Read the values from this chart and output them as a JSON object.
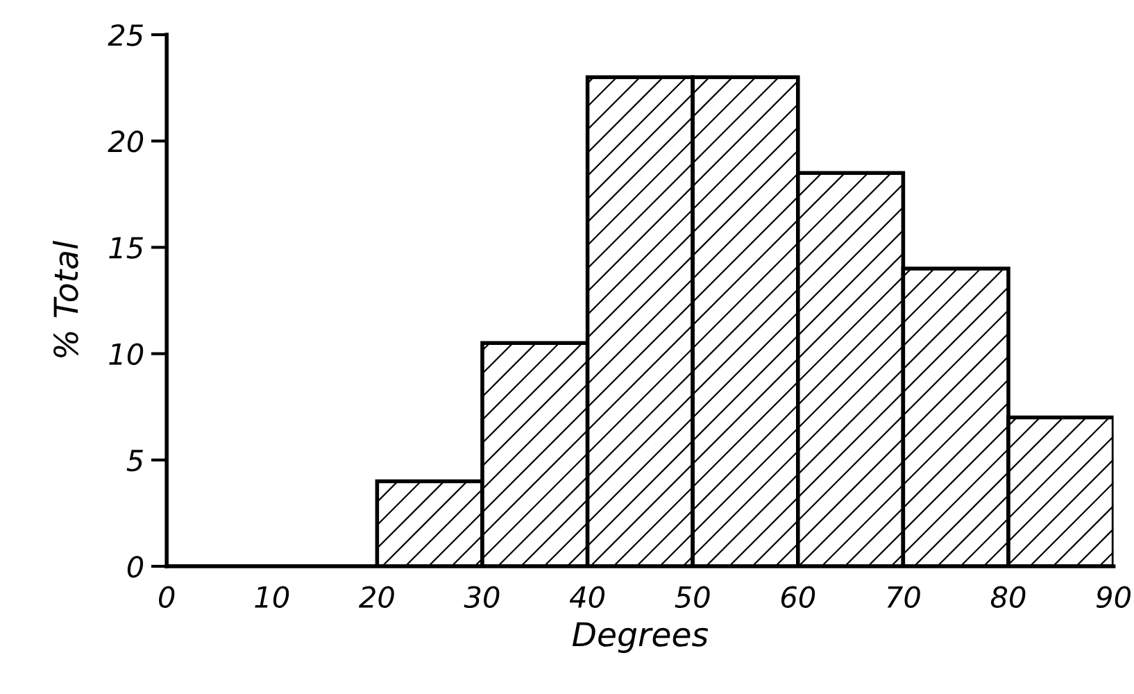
{
  "chart_data": {
    "type": "histogram",
    "xlabel": "Degrees",
    "ylabel": "% Total",
    "bins": [
      0,
      10,
      20,
      30,
      40,
      50,
      60,
      70,
      80,
      90
    ],
    "values": [
      0,
      0,
      4,
      10.5,
      23,
      23,
      18.5,
      14,
      7
    ],
    "color": "#000000",
    "xlim": [
      0,
      90
    ],
    "xticks": [
      0,
      10,
      20,
      30,
      40,
      50,
      60,
      70,
      80,
      90
    ],
    "ylim": [
      0,
      25
    ],
    "yticks": [
      0,
      5,
      10,
      15,
      20,
      25
    ],
    "grid": false
  }
}
